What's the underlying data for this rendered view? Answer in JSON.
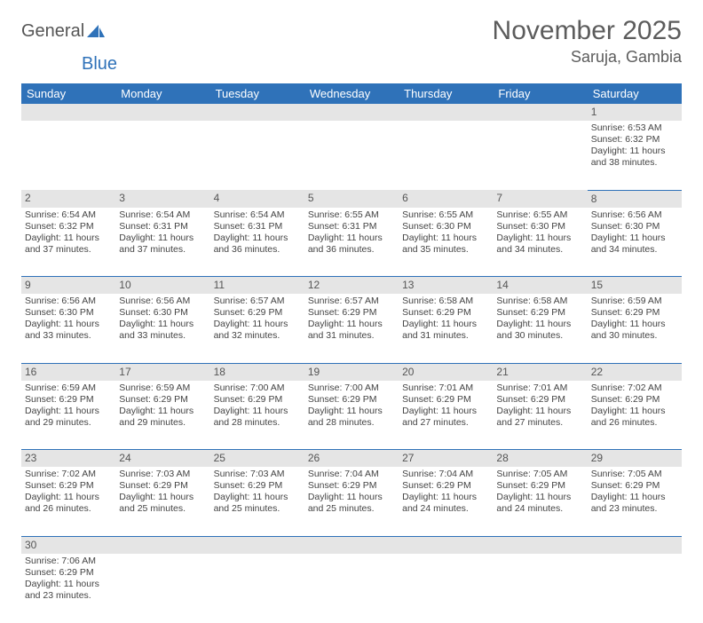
{
  "brand": {
    "word1": "General",
    "word2": "Blue"
  },
  "title": "November 2025",
  "location": "Saruja, Gambia",
  "colors": {
    "header_bg": "#2f72b9",
    "header_text": "#ffffff",
    "daynum_bg": "#e5e5e5",
    "text": "#444444",
    "rule": "#2f72b9"
  },
  "weekdays": [
    "Sunday",
    "Monday",
    "Tuesday",
    "Wednesday",
    "Thursday",
    "Friday",
    "Saturday"
  ],
  "weeks": [
    [
      null,
      null,
      null,
      null,
      null,
      null,
      {
        "n": "1",
        "sr": "Sunrise: 6:53 AM",
        "ss": "Sunset: 6:32 PM",
        "d1": "Daylight: 11 hours",
        "d2": "and 38 minutes."
      }
    ],
    [
      {
        "n": "2",
        "sr": "Sunrise: 6:54 AM",
        "ss": "Sunset: 6:32 PM",
        "d1": "Daylight: 11 hours",
        "d2": "and 37 minutes."
      },
      {
        "n": "3",
        "sr": "Sunrise: 6:54 AM",
        "ss": "Sunset: 6:31 PM",
        "d1": "Daylight: 11 hours",
        "d2": "and 37 minutes."
      },
      {
        "n": "4",
        "sr": "Sunrise: 6:54 AM",
        "ss": "Sunset: 6:31 PM",
        "d1": "Daylight: 11 hours",
        "d2": "and 36 minutes."
      },
      {
        "n": "5",
        "sr": "Sunrise: 6:55 AM",
        "ss": "Sunset: 6:31 PM",
        "d1": "Daylight: 11 hours",
        "d2": "and 36 minutes."
      },
      {
        "n": "6",
        "sr": "Sunrise: 6:55 AM",
        "ss": "Sunset: 6:30 PM",
        "d1": "Daylight: 11 hours",
        "d2": "and 35 minutes."
      },
      {
        "n": "7",
        "sr": "Sunrise: 6:55 AM",
        "ss": "Sunset: 6:30 PM",
        "d1": "Daylight: 11 hours",
        "d2": "and 34 minutes."
      },
      {
        "n": "8",
        "sr": "Sunrise: 6:56 AM",
        "ss": "Sunset: 6:30 PM",
        "d1": "Daylight: 11 hours",
        "d2": "and 34 minutes."
      }
    ],
    [
      {
        "n": "9",
        "sr": "Sunrise: 6:56 AM",
        "ss": "Sunset: 6:30 PM",
        "d1": "Daylight: 11 hours",
        "d2": "and 33 minutes."
      },
      {
        "n": "10",
        "sr": "Sunrise: 6:56 AM",
        "ss": "Sunset: 6:30 PM",
        "d1": "Daylight: 11 hours",
        "d2": "and 33 minutes."
      },
      {
        "n": "11",
        "sr": "Sunrise: 6:57 AM",
        "ss": "Sunset: 6:29 PM",
        "d1": "Daylight: 11 hours",
        "d2": "and 32 minutes."
      },
      {
        "n": "12",
        "sr": "Sunrise: 6:57 AM",
        "ss": "Sunset: 6:29 PM",
        "d1": "Daylight: 11 hours",
        "d2": "and 31 minutes."
      },
      {
        "n": "13",
        "sr": "Sunrise: 6:58 AM",
        "ss": "Sunset: 6:29 PM",
        "d1": "Daylight: 11 hours",
        "d2": "and 31 minutes."
      },
      {
        "n": "14",
        "sr": "Sunrise: 6:58 AM",
        "ss": "Sunset: 6:29 PM",
        "d1": "Daylight: 11 hours",
        "d2": "and 30 minutes."
      },
      {
        "n": "15",
        "sr": "Sunrise: 6:59 AM",
        "ss": "Sunset: 6:29 PM",
        "d1": "Daylight: 11 hours",
        "d2": "and 30 minutes."
      }
    ],
    [
      {
        "n": "16",
        "sr": "Sunrise: 6:59 AM",
        "ss": "Sunset: 6:29 PM",
        "d1": "Daylight: 11 hours",
        "d2": "and 29 minutes."
      },
      {
        "n": "17",
        "sr": "Sunrise: 6:59 AM",
        "ss": "Sunset: 6:29 PM",
        "d1": "Daylight: 11 hours",
        "d2": "and 29 minutes."
      },
      {
        "n": "18",
        "sr": "Sunrise: 7:00 AM",
        "ss": "Sunset: 6:29 PM",
        "d1": "Daylight: 11 hours",
        "d2": "and 28 minutes."
      },
      {
        "n": "19",
        "sr": "Sunrise: 7:00 AM",
        "ss": "Sunset: 6:29 PM",
        "d1": "Daylight: 11 hours",
        "d2": "and 28 minutes."
      },
      {
        "n": "20",
        "sr": "Sunrise: 7:01 AM",
        "ss": "Sunset: 6:29 PM",
        "d1": "Daylight: 11 hours",
        "d2": "and 27 minutes."
      },
      {
        "n": "21",
        "sr": "Sunrise: 7:01 AM",
        "ss": "Sunset: 6:29 PM",
        "d1": "Daylight: 11 hours",
        "d2": "and 27 minutes."
      },
      {
        "n": "22",
        "sr": "Sunrise: 7:02 AM",
        "ss": "Sunset: 6:29 PM",
        "d1": "Daylight: 11 hours",
        "d2": "and 26 minutes."
      }
    ],
    [
      {
        "n": "23",
        "sr": "Sunrise: 7:02 AM",
        "ss": "Sunset: 6:29 PM",
        "d1": "Daylight: 11 hours",
        "d2": "and 26 minutes."
      },
      {
        "n": "24",
        "sr": "Sunrise: 7:03 AM",
        "ss": "Sunset: 6:29 PM",
        "d1": "Daylight: 11 hours",
        "d2": "and 25 minutes."
      },
      {
        "n": "25",
        "sr": "Sunrise: 7:03 AM",
        "ss": "Sunset: 6:29 PM",
        "d1": "Daylight: 11 hours",
        "d2": "and 25 minutes."
      },
      {
        "n": "26",
        "sr": "Sunrise: 7:04 AM",
        "ss": "Sunset: 6:29 PM",
        "d1": "Daylight: 11 hours",
        "d2": "and 25 minutes."
      },
      {
        "n": "27",
        "sr": "Sunrise: 7:04 AM",
        "ss": "Sunset: 6:29 PM",
        "d1": "Daylight: 11 hours",
        "d2": "and 24 minutes."
      },
      {
        "n": "28",
        "sr": "Sunrise: 7:05 AM",
        "ss": "Sunset: 6:29 PM",
        "d1": "Daylight: 11 hours",
        "d2": "and 24 minutes."
      },
      {
        "n": "29",
        "sr": "Sunrise: 7:05 AM",
        "ss": "Sunset: 6:29 PM",
        "d1": "Daylight: 11 hours",
        "d2": "and 23 minutes."
      }
    ],
    [
      {
        "n": "30",
        "sr": "Sunrise: 7:06 AM",
        "ss": "Sunset: 6:29 PM",
        "d1": "Daylight: 11 hours",
        "d2": "and 23 minutes."
      },
      null,
      null,
      null,
      null,
      null,
      null
    ]
  ]
}
